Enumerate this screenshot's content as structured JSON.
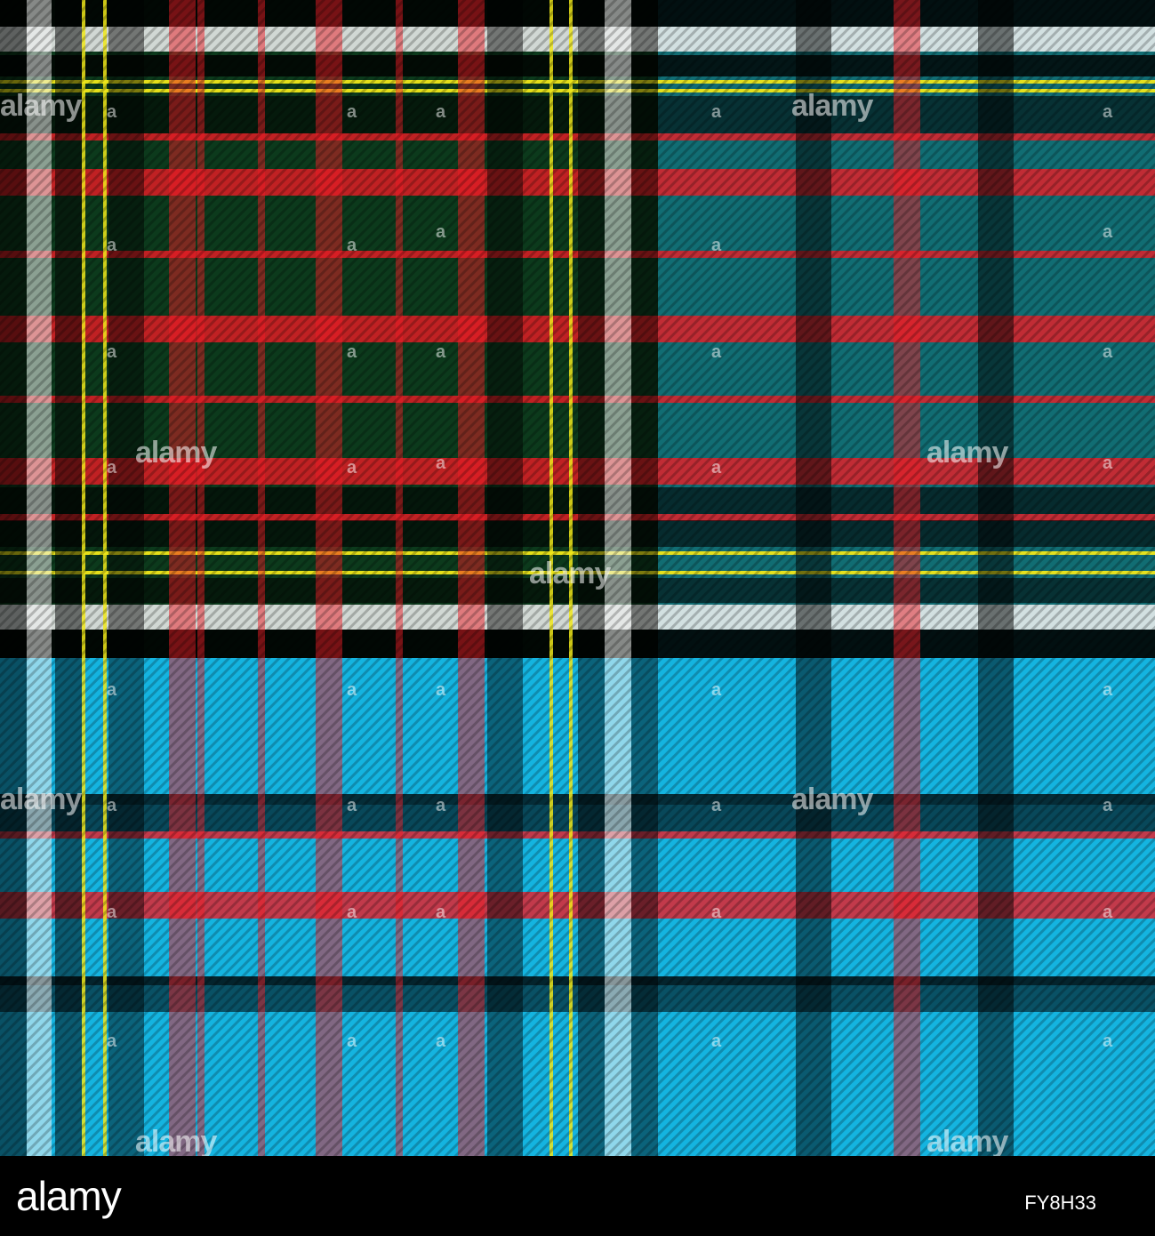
{
  "logo_text": "alamy",
  "image_id": "FY8H33",
  "watermark_text": "alamy",
  "watermark_mark": "a",
  "colors": {
    "green": "#0c3a1c",
    "teal": "#116d73",
    "navy": "#0a4862",
    "cyan": "#14b4e0",
    "red": "#ee1c26",
    "black": "#000000",
    "yellow": "#f0e81a",
    "white": "#f4f4f4",
    "pink": "#e9637f",
    "light_blue": "#8ccde8"
  }
}
